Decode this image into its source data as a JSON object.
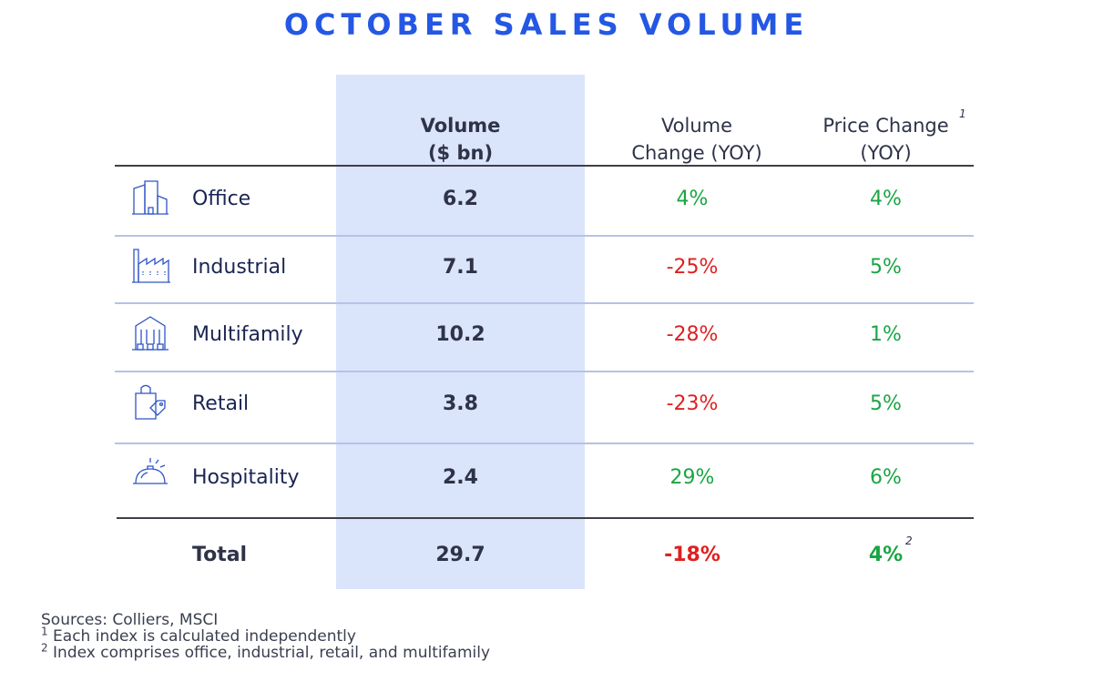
{
  "title": "OCTOBER SALES VOLUME",
  "colors": {
    "title": "#2457e3",
    "volume_band": "#dae4fb",
    "positive": "#1aa543",
    "negative": "#e01f1f",
    "icon_stroke": "#2f55c7"
  },
  "headers": {
    "volume_line1": "Volume",
    "volume_line2": "($ bn)",
    "vchg_line1": "Volume",
    "vchg_line2": "Change (YOY)",
    "pchg_line1": "Price Change",
    "pchg_line2": "(YOY)",
    "pchg_footnote": "1"
  },
  "chart_data": {
    "type": "table",
    "title": "OCTOBER SALES VOLUME",
    "columns": [
      "",
      "Volume ($ bn)",
      "Volume Change (YOY)",
      "Price Change (YOY)"
    ],
    "rows": [
      {
        "category": "Office",
        "icon": "office-building-icon",
        "volume": "6.2",
        "volume_change": "4%",
        "price_change": "4%",
        "vchg_sign": "pos",
        "pchg_sign": "pos"
      },
      {
        "category": "Industrial",
        "icon": "factory-icon",
        "volume": "7.1",
        "volume_change": "-25%",
        "price_change": "5%",
        "vchg_sign": "neg",
        "pchg_sign": "pos"
      },
      {
        "category": "Multifamily",
        "icon": "apartment-building-icon",
        "volume": "10.2",
        "volume_change": "-28%",
        "price_change": "1%",
        "vchg_sign": "neg",
        "pchg_sign": "pos"
      },
      {
        "category": "Retail",
        "icon": "shopping-bag-icon",
        "volume": "3.8",
        "volume_change": "-23%",
        "price_change": "5%",
        "vchg_sign": "neg",
        "pchg_sign": "pos"
      },
      {
        "category": "Hospitality",
        "icon": "service-bell-icon",
        "volume": "2.4",
        "volume_change": "29%",
        "price_change": "6%",
        "vchg_sign": "pos",
        "pchg_sign": "pos"
      }
    ],
    "total": {
      "category": "Total",
      "volume": "29.7",
      "volume_change": "-18%",
      "price_change": "4%",
      "price_footnote": "2"
    }
  },
  "sources": {
    "line1": "Sources: Colliers, MSCI",
    "note1_mark": "1",
    "note1_text": " Each index is calculated independently",
    "note2_mark": "2",
    "note2_text": " Index comprises office, industrial, retail, and multifamily"
  }
}
